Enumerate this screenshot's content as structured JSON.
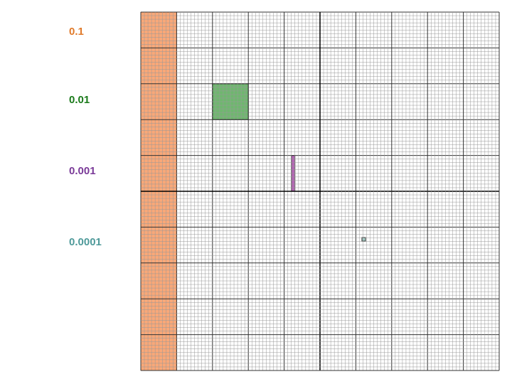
{
  "items": [
    {
      "value": 0.1,
      "color": "#e07a2a",
      "fill": "#f9a878"
    },
    {
      "value": 0.01,
      "color": "#1a7a1a",
      "fill": "#6fb76f"
    },
    {
      "value": 0.001,
      "color": "#7a3a98",
      "fill": "#b468b4"
    },
    {
      "value": 0.0001,
      "color": "#4f9a9a",
      "fill": "#a8d4cc"
    }
  ]
}
